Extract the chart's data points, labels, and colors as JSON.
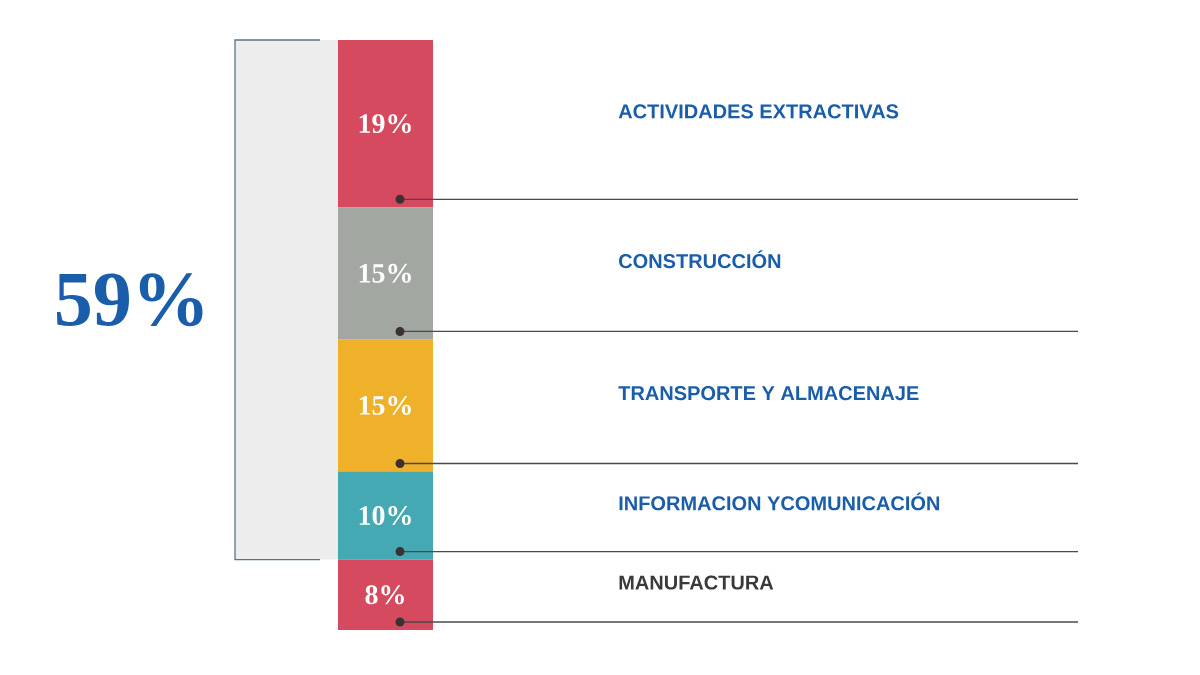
{
  "chart_data": {
    "type": "bar",
    "stacked": true,
    "categories": [
      null
    ],
    "series": [
      {
        "name": "MANUFACTURA",
        "color": "#d64a5f",
        "values": [
          8
        ],
        "value_labels": [
          "8%"
        ]
      },
      {
        "name": "INFORMACION YCOMUNICACIÓN",
        "color": "#45a9b3",
        "values": [
          10
        ],
        "value_labels": [
          "10%"
        ]
      },
      {
        "name": "TRANSPORTE Y ALMACENAJE",
        "color": "#efb12a",
        "values": [
          15
        ],
        "value_labels": [
          "15%"
        ]
      },
      {
        "name": "CONSTRUCCIÓN",
        "color": "#a2a7a1",
        "values": [
          15
        ],
        "value_labels": [
          "15%"
        ]
      },
      {
        "name": "ACTIVIDADES EXTRACTIVAS",
        "color": "#d64a5f",
        "values": [
          19
        ],
        "value_labels": [
          "19%"
        ]
      }
    ],
    "bands": [
      {
        "axis": "y",
        "from": 8,
        "to": 67,
        "label": "59%",
        "color": "#ededee"
      }
    ]
  }
}
